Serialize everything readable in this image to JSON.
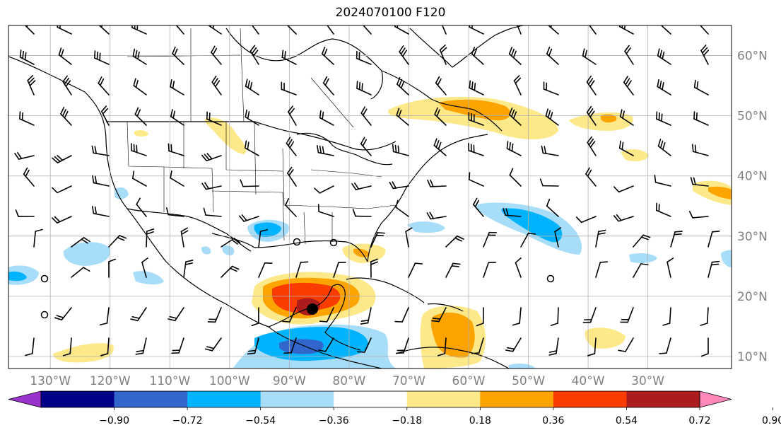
{
  "title": "2024070100 F120",
  "map": {
    "lon_range": [
      -137,
      -16
    ],
    "lat_range": [
      8,
      65
    ],
    "lat_labels": [
      "10°N",
      "20°N",
      "30°N",
      "40°N",
      "50°N",
      "60°N"
    ],
    "lat_values": [
      10,
      20,
      30,
      40,
      50,
      60
    ],
    "lon_labels": [
      "130°W",
      "120°W",
      "110°W",
      "100°W",
      "90°W",
      "80°W",
      "70°W",
      "60°W",
      "50°W",
      "40°W",
      "30°W"
    ],
    "lon_values": [
      -130,
      -120,
      -110,
      -100,
      -90,
      -80,
      -70,
      -60,
      -50,
      -40,
      -30
    ],
    "grid": true,
    "colors": {
      "neg_090": "#9933cc",
      "neg_072": "#000088",
      "neg_054": "#3366cc",
      "neg_036": "#00b3ff",
      "neg_018": "#a8ddfa",
      "zero": "#ffffff",
      "pos_018": "#fde98a",
      "pos_036": "#fda400",
      "pos_054": "#fb3c00",
      "pos_072": "#ad1c1c",
      "pos_090": "#ff88bb"
    }
  },
  "colorbar": {
    "ticks": [
      "−0.90",
      "−0.72",
      "−0.54",
      "−0.36",
      "−0.18",
      "0.18",
      "0.36",
      "0.54",
      "0.72",
      "0.90"
    ],
    "tick_values": [
      -0.9,
      -0.72,
      -0.54,
      -0.36,
      -0.18,
      0.18,
      0.36,
      0.54,
      0.72,
      0.9
    ],
    "extend": "both",
    "bins": [
      "#9933cc",
      "#000088",
      "#3366cc",
      "#00b3ff",
      "#a8ddfa",
      "#ffffff",
      "#fde98a",
      "#fda400",
      "#fb3c00",
      "#ad1c1c",
      "#ff88bb"
    ]
  }
}
